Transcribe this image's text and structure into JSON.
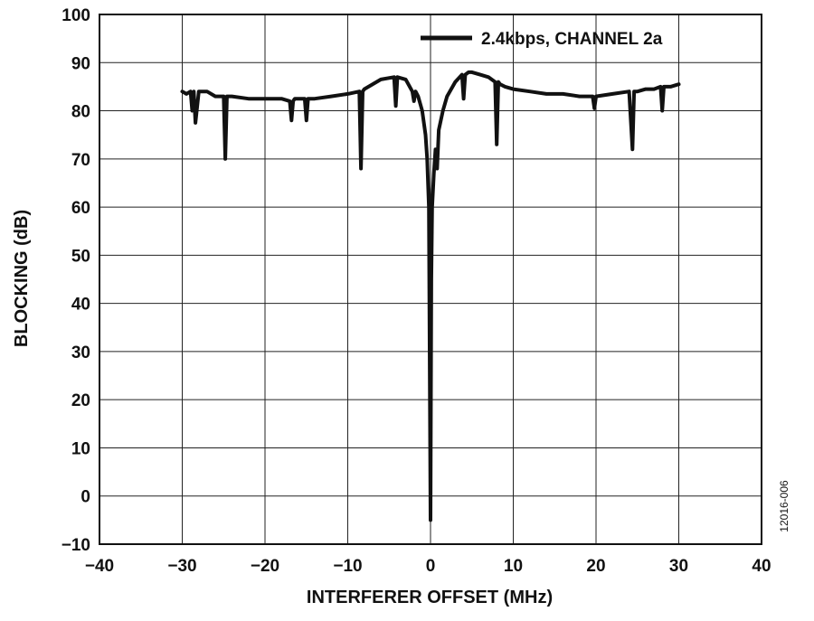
{
  "chart_data": {
    "type": "line",
    "title": "",
    "xlabel": "INTERFERER OFFSET (MHz)",
    "ylabel": "BLOCKING (dB)",
    "xlim": [
      -40,
      40
    ],
    "ylim": [
      -10,
      100
    ],
    "xticks": [
      -40,
      -30,
      -20,
      -10,
      0,
      10,
      20,
      30,
      40
    ],
    "xtick_labels": [
      "−40",
      "−30",
      "−20",
      "−10",
      "0",
      "10",
      "20",
      "30",
      "40"
    ],
    "yticks": [
      -10,
      0,
      10,
      20,
      30,
      40,
      50,
      60,
      70,
      80,
      90,
      100
    ],
    "ytick_labels": [
      "−10",
      "0",
      "10",
      "20",
      "30",
      "40",
      "50",
      "60",
      "70",
      "80",
      "90",
      "100"
    ],
    "grid": true,
    "legend_position": "top-right",
    "line_color": "#111111",
    "series": [
      {
        "name": "2.4kbps, CHANNEL 2a",
        "x": [
          -30,
          -29.5,
          -29,
          -28.8,
          -28.6,
          -28.4,
          -28,
          -27,
          -26,
          -25,
          -24.8,
          -24.6,
          -24.4,
          -24,
          -22,
          -20,
          -18,
          -17,
          -16.8,
          -16.6,
          -16.4,
          -16,
          -15.2,
          -15,
          -14.8,
          -14,
          -12,
          -10,
          -8.6,
          -8.4,
          -8.2,
          -8,
          -6,
          -4.4,
          -4.2,
          -4,
          -3,
          -2.2,
          -2,
          -1.8,
          -1.5,
          -1,
          -0.6,
          -0.4,
          -0.2,
          0,
          0.1,
          0.2,
          0.4,
          0.6,
          0.8,
          1,
          1.5,
          2,
          3,
          3.8,
          4,
          4.2,
          4.6,
          5,
          6,
          7,
          7.8,
          8,
          8.2,
          8.4,
          9,
          10,
          12,
          14,
          16,
          18,
          19.6,
          19.8,
          20,
          22,
          24,
          24.4,
          24.6,
          24.8,
          25,
          26,
          27,
          27.8,
          28,
          28.2,
          28.5,
          29,
          30
        ],
        "y": [
          84,
          83.5,
          84,
          80,
          84,
          77.5,
          84,
          84,
          83,
          83,
          70,
          83,
          83,
          83,
          82.5,
          82.5,
          82.5,
          82,
          78,
          82,
          82.5,
          82.5,
          82.5,
          78,
          82.5,
          82.5,
          83,
          83.5,
          84,
          68,
          84,
          84.5,
          86.5,
          87,
          81,
          87,
          86.5,
          84,
          82,
          84,
          83,
          80,
          75,
          70,
          60,
          -5,
          45,
          60,
          67,
          72,
          68,
          76,
          80,
          83,
          86,
          87.5,
          82.5,
          87.5,
          88,
          88,
          87.5,
          87,
          86,
          73,
          86,
          85.5,
          85,
          84.5,
          84,
          83.5,
          83.5,
          83,
          83,
          80.5,
          83,
          83.5,
          84,
          72,
          84,
          84,
          84,
          84.5,
          84.5,
          85,
          80,
          85,
          85,
          85,
          85.5
        ]
      }
    ]
  },
  "figure_id": "12016-006"
}
